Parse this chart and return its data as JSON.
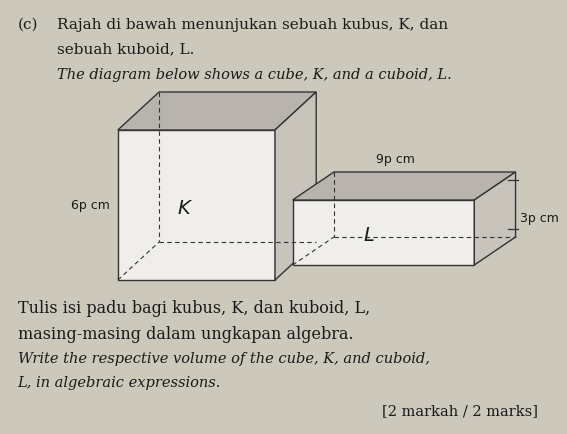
{
  "bg_color": "#cdc8bc",
  "title_c": "(c)",
  "line1_malay": "Rajah di bawah menunjukan sebuah kubus, K, dan",
  "line2_malay": "sebuah kuboid, L.",
  "line1_english": "The diagram below shows a cube, K, and a cuboid, L.",
  "cube_label": "K",
  "cuboid_label": "L",
  "cube_side_label": "6p cm",
  "cuboid_top_label": "9p cm",
  "cuboid_side_label": "3p cm",
  "bottom_line1": "Tulis isi padu bagi kubus, K, dan kuboid, L,",
  "bottom_line2": "masing-masing dalam ungkapan algebra.",
  "bottom_line3_italic": "Write the respective volume of the cube, K, and cuboid,",
  "bottom_line4_italic": "L, in algebraic expressions.",
  "marks_line": "[2 markah / 2 marks]",
  "face_color_front": "#f0eeea",
  "face_color_top": "#b8b4ad",
  "face_color_side": "#c8c4bc",
  "edge_color": "#333333",
  "text_color": "#1a1a1a",
  "tick_color": "#333333"
}
